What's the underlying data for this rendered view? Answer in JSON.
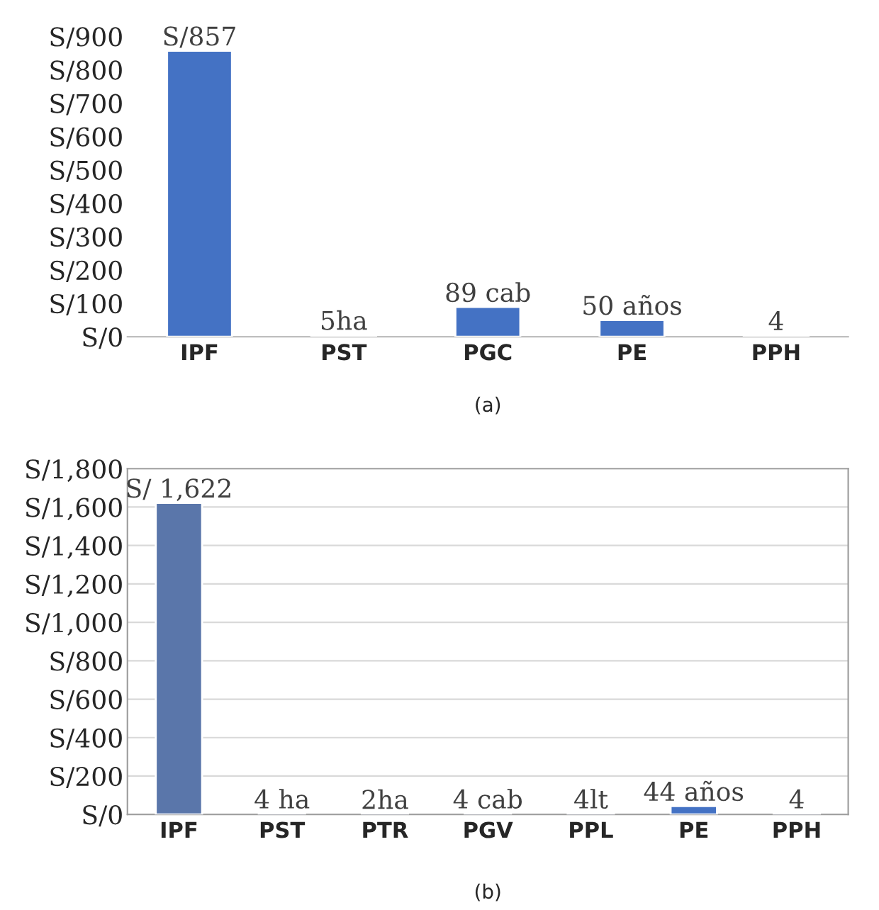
{
  "chart_data": [
    {
      "type": "bar",
      "categories": [
        "IPF",
        "PST",
        "PGC",
        "PE",
        "PPH"
      ],
      "values": [
        857,
        5,
        89,
        50,
        4
      ],
      "colors": [
        "#4472c4",
        "#4472c4",
        "#4472c4",
        "#4472c4",
        "#4472c4"
      ],
      "value_labels": [
        "S/857",
        "5ha",
        "89 cab",
        "50 años",
        "4"
      ],
      "ylim": [
        0,
        900
      ],
      "yticks": [
        {
          "value": 0,
          "label": "S/0"
        },
        {
          "value": 100,
          "label": "S/100"
        },
        {
          "value": 200,
          "label": "S/200"
        },
        {
          "value": 300,
          "label": "S/300"
        },
        {
          "value": 400,
          "label": "S/400"
        },
        {
          "value": 500,
          "label": "S/500"
        },
        {
          "value": 600,
          "label": "S/600"
        },
        {
          "value": 700,
          "label": "S/700"
        },
        {
          "value": 800,
          "label": "S/800"
        },
        {
          "value": 900,
          "label": "S/900"
        }
      ],
      "grid": false,
      "annotations": [
        "(a)"
      ]
    },
    {
      "type": "bar",
      "categories": [
        "IPF",
        "PST",
        "PTR",
        "PGV",
        "PPL",
        "PE",
        "PPH"
      ],
      "values": [
        1622,
        4,
        2,
        4,
        4,
        44,
        4
      ],
      "colors": [
        "#5a76aa",
        "#4472c4",
        "#4472c4",
        "#4472c4",
        "#4472c4",
        "#4472c4",
        "#4472c4"
      ],
      "value_labels": [
        "S/ 1,622",
        "4 ha",
        "2ha",
        "4 cab",
        "4lt",
        "44 años",
        "4"
      ],
      "ylim": [
        0,
        1800
      ],
      "yticks": [
        {
          "value": 0,
          "label": "S/0"
        },
        {
          "value": 200,
          "label": "S/200"
        },
        {
          "value": 400,
          "label": "S/400"
        },
        {
          "value": 600,
          "label": "S/600"
        },
        {
          "value": 800,
          "label": "S/800"
        },
        {
          "value": 1000,
          "label": "S/1,000"
        },
        {
          "value": 1200,
          "label": "S/1,200"
        },
        {
          "value": 1400,
          "label": "S/1,400"
        },
        {
          "value": 1600,
          "label": "S/1,600"
        },
        {
          "value": 1800,
          "label": "S/1,800"
        }
      ],
      "grid": "y",
      "annotations": [
        "(b)"
      ]
    }
  ]
}
